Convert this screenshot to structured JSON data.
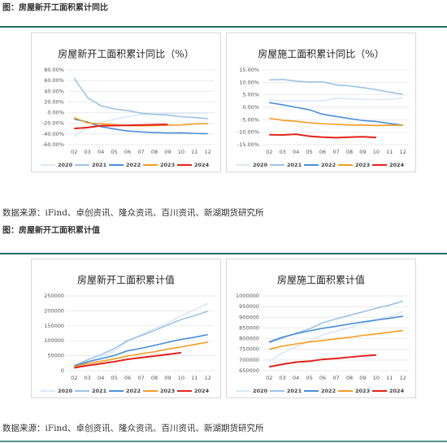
{
  "sections": [
    {
      "caption": "图：房屋新开工面积累计同比",
      "source": "数据来源：iFind、卓创资讯、隆众资讯、百川资讯、新湖期货研究所"
    },
    {
      "caption": "图：房屋新开工面积累计值",
      "source": "数据来源：iFind、卓创资讯、隆众资讯、百川资讯、新湖期货研究所"
    }
  ],
  "chart_data": [
    {
      "type": "line",
      "title": "房屋新开工面积累计同比（%）",
      "categories": [
        "02",
        "03",
        "04",
        "05",
        "06",
        "07",
        "08",
        "09",
        "10",
        "11",
        "12"
      ],
      "ylim": [
        -60,
        80
      ],
      "yticks": [
        {
          "value": 80,
          "label": "80.00%"
        },
        {
          "value": 60,
          "label": "60.00%"
        },
        {
          "value": 40,
          "label": "40.00%"
        },
        {
          "value": 20,
          "label": "20.00%"
        },
        {
          "value": 0,
          "label": "0.00%"
        },
        {
          "value": -20,
          "label": "-20.00%"
        },
        {
          "value": -40,
          "label": "-40.00%"
        },
        {
          "value": -60,
          "label": "-60.00%"
        }
      ],
      "grid": true,
      "legend": "bottom",
      "series": [
        {
          "name": "2020",
          "color": "#dbe8f6",
          "values": [
            -44.9,
            -27.2,
            -18.4,
            -12.8,
            -7.6,
            -3.6,
            -2.4,
            -1.8,
            -0.9,
            -1.0,
            -1.2
          ]
        },
        {
          "name": "2021",
          "color": "#9dc3e6",
          "values": [
            64.3,
            28.2,
            12.8,
            6.9,
            3.8,
            -0.9,
            -3.2,
            -4.5,
            -7.7,
            -9.1,
            -11.4
          ]
        },
        {
          "name": "2022",
          "color": "#4a8fd8",
          "values": [
            -12.2,
            -17.5,
            -26.3,
            -30.6,
            -34.4,
            -36.1,
            -37.2,
            -38.0,
            -37.8,
            -38.9,
            -39.4
          ]
        },
        {
          "name": "2023",
          "color": "#f39c1f",
          "values": [
            -9.4,
            -19.2,
            -21.2,
            -22.6,
            -24.3,
            -24.5,
            -24.4,
            -23.4,
            -23.2,
            -21.2,
            -20.4
          ]
        },
        {
          "name": "2024",
          "color": "#e3221c",
          "values": [
            -29.7,
            -27.8,
            -24.6,
            -24.2,
            -23.7,
            -23.2,
            -22.5,
            -22.2,
            null,
            null,
            null
          ]
        }
      ]
    },
    {
      "type": "line",
      "title": "房屋施工面积累计同比（%）",
      "categories": [
        "02",
        "03",
        "04",
        "05",
        "06",
        "07",
        "08",
        "09",
        "10",
        "11",
        "12"
      ],
      "ylim": [
        -15,
        15
      ],
      "yticks": [
        {
          "value": 15,
          "label": "15.00%"
        },
        {
          "value": 10,
          "label": "10.00%"
        },
        {
          "value": 5,
          "label": "5.00%"
        },
        {
          "value": 0,
          "label": "0.00%"
        },
        {
          "value": -5,
          "label": "-5.00%"
        },
        {
          "value": -10,
          "label": "-10.00%"
        },
        {
          "value": -15,
          "label": "-15.00%"
        }
      ],
      "grid": true,
      "legend": "bottom",
      "series": [
        {
          "name": "2020",
          "color": "#dbe8f6",
          "values": [
            2.9,
            2.6,
            2.5,
            2.6,
            2.6,
            3.6,
            3.4,
            3.1,
            3.1,
            3.2,
            3.7
          ]
        },
        {
          "name": "2021",
          "color": "#9dc3e6",
          "values": [
            11.0,
            11.2,
            10.5,
            10.1,
            10.2,
            9.0,
            8.6,
            7.9,
            7.1,
            6.1,
            5.2
          ]
        },
        {
          "name": "2022",
          "color": "#4a8fd8",
          "values": [
            1.9,
            1.0,
            0.0,
            -1.0,
            -2.8,
            -3.7,
            -4.5,
            -5.3,
            -5.7,
            -6.5,
            -7.2
          ]
        },
        {
          "name": "2023",
          "color": "#f39c1f",
          "values": [
            -4.4,
            -5.2,
            -5.6,
            -6.2,
            -6.6,
            -6.8,
            -7.1,
            -7.1,
            -7.3,
            -7.2,
            -7.2
          ]
        },
        {
          "name": "2024",
          "color": "#e3221c",
          "values": [
            -11.0,
            -11.1,
            -10.8,
            -11.6,
            -12.0,
            -12.2,
            -12.0,
            -11.8,
            -12.1,
            null,
            null
          ]
        }
      ]
    },
    {
      "type": "line",
      "title": "房屋新开工面积累计值",
      "categories": [
        "02",
        "03",
        "04",
        "05",
        "06",
        "07",
        "08",
        "09",
        "10",
        "11",
        "12"
      ],
      "ylim": [
        0,
        250000
      ],
      "yticks": [
        250000,
        200000,
        150000,
        100000,
        50000,
        0
      ],
      "grid": true,
      "legend": "bottom",
      "series": [
        {
          "name": "2020",
          "color": "#dbe8f6",
          "values": [
            10369,
            28203,
            46037,
            64227,
            97537,
            119791,
            140368,
            160090,
            183177,
            203806,
            224433
          ]
        },
        {
          "name": "2021",
          "color": "#9dc3e6",
          "values": [
            17309,
            36163,
            53503,
            73373,
            101288,
            116962,
            134254,
            152916,
            170919,
            183655,
            198895
          ]
        },
        {
          "name": "2022",
          "color": "#4a8fd8",
          "values": [
            15130,
            29838,
            39739,
            50804,
            66423,
            74705,
            84401,
            94767,
            104423,
            111632,
            120587
          ]
        },
        {
          "name": "2023",
          "color": "#f39c1f",
          "values": [
            13658,
            24121,
            31323,
            39245,
            48935,
            56407,
            63169,
            72123,
            79177,
            87455,
            95376
          ]
        },
        {
          "name": "2024",
          "color": "#e3221c",
          "values": [
            9429,
            17409,
            23510,
            30090,
            38023,
            43477,
            48938,
            54405,
            60128,
            null,
            null
          ]
        }
      ]
    },
    {
      "type": "line",
      "title": "房屋施工面积累计值",
      "categories": [
        "02",
        "03",
        "04",
        "05",
        "06",
        "07",
        "08",
        "09",
        "10",
        "11",
        "12"
      ],
      "ylim": [
        650000,
        1000000
      ],
      "yticks": [
        1000000,
        950000,
        900000,
        850000,
        800000,
        750000,
        700000,
        650000
      ],
      "grid": true,
      "legend": "bottom",
      "series": [
        {
          "name": "2020",
          "color": "#dbe8f6",
          "values": [
            695894,
            733252,
            761214,
            788612,
            817711,
            834735,
            850939,
            869400,
            885600,
            902200,
            926759
          ]
        },
        {
          "name": "2021",
          "color": "#9dc3e6",
          "values": [
            781000,
            803000,
            825000,
            845000,
            874000,
            892000,
            909000,
            925000,
            942000,
            957000,
            975000
          ]
        },
        {
          "name": "2022",
          "color": "#4a8fd8",
          "values": [
            785000,
            807000,
            823000,
            836000,
            848000,
            858000,
            868000,
            878000,
            887000,
            895000,
            905000
          ]
        },
        {
          "name": "2023",
          "color": "#f39c1f",
          "values": [
            750000,
            765000,
            775000,
            784000,
            791000,
            799000,
            806000,
            815000,
            822000,
            830000,
            838000
          ]
        },
        {
          "name": "2024",
          "color": "#e3221c",
          "values": [
            668000,
            680000,
            690000,
            694000,
            703000,
            707000,
            713000,
            719000,
            723000,
            null,
            null
          ]
        }
      ]
    }
  ]
}
